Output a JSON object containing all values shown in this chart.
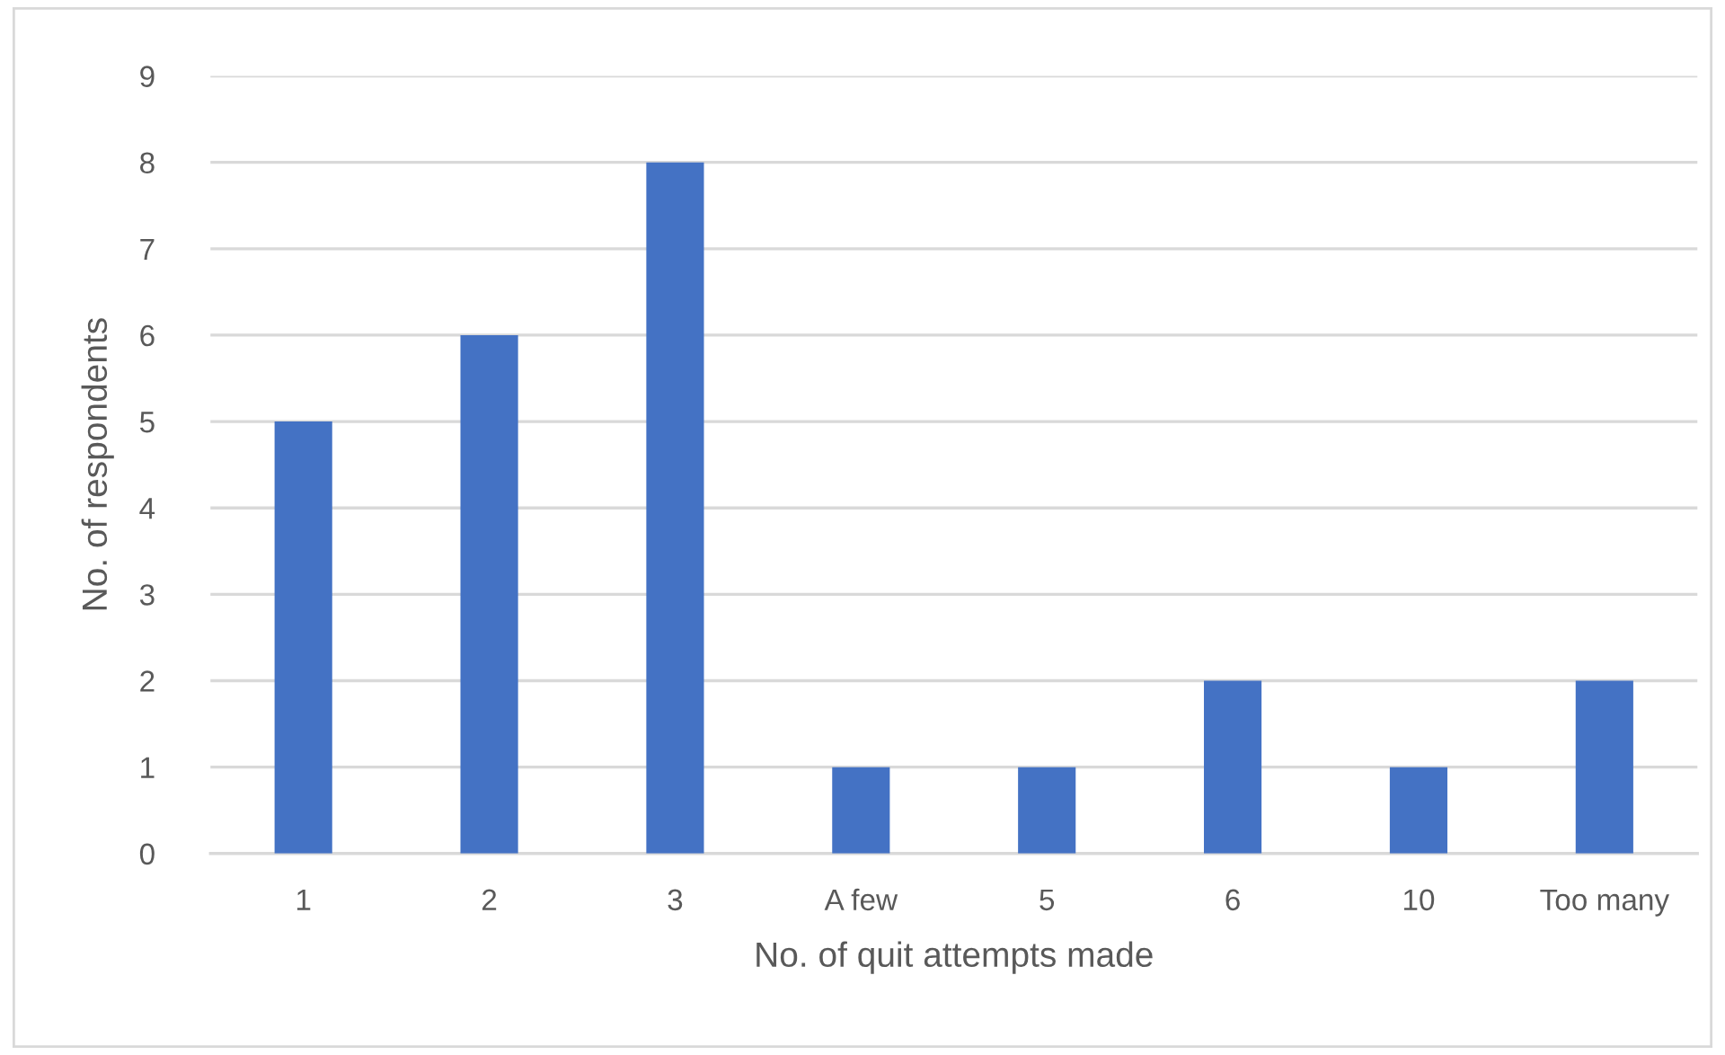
{
  "chart_data": {
    "type": "bar",
    "xlabel": "No. of quit attempts made",
    "ylabel": "No. of respondents",
    "categories": [
      "1",
      "2",
      "3",
      "A few",
      "5",
      "6",
      "10",
      "Too many"
    ],
    "values": [
      5,
      6,
      8,
      1,
      1,
      2,
      1,
      2
    ],
    "color": "#4472c4",
    "ylim": [
      0,
      9
    ],
    "yticks": [
      0,
      1,
      2,
      3,
      4,
      5,
      6,
      7,
      8,
      9
    ],
    "grid": "y",
    "legend": false
  }
}
